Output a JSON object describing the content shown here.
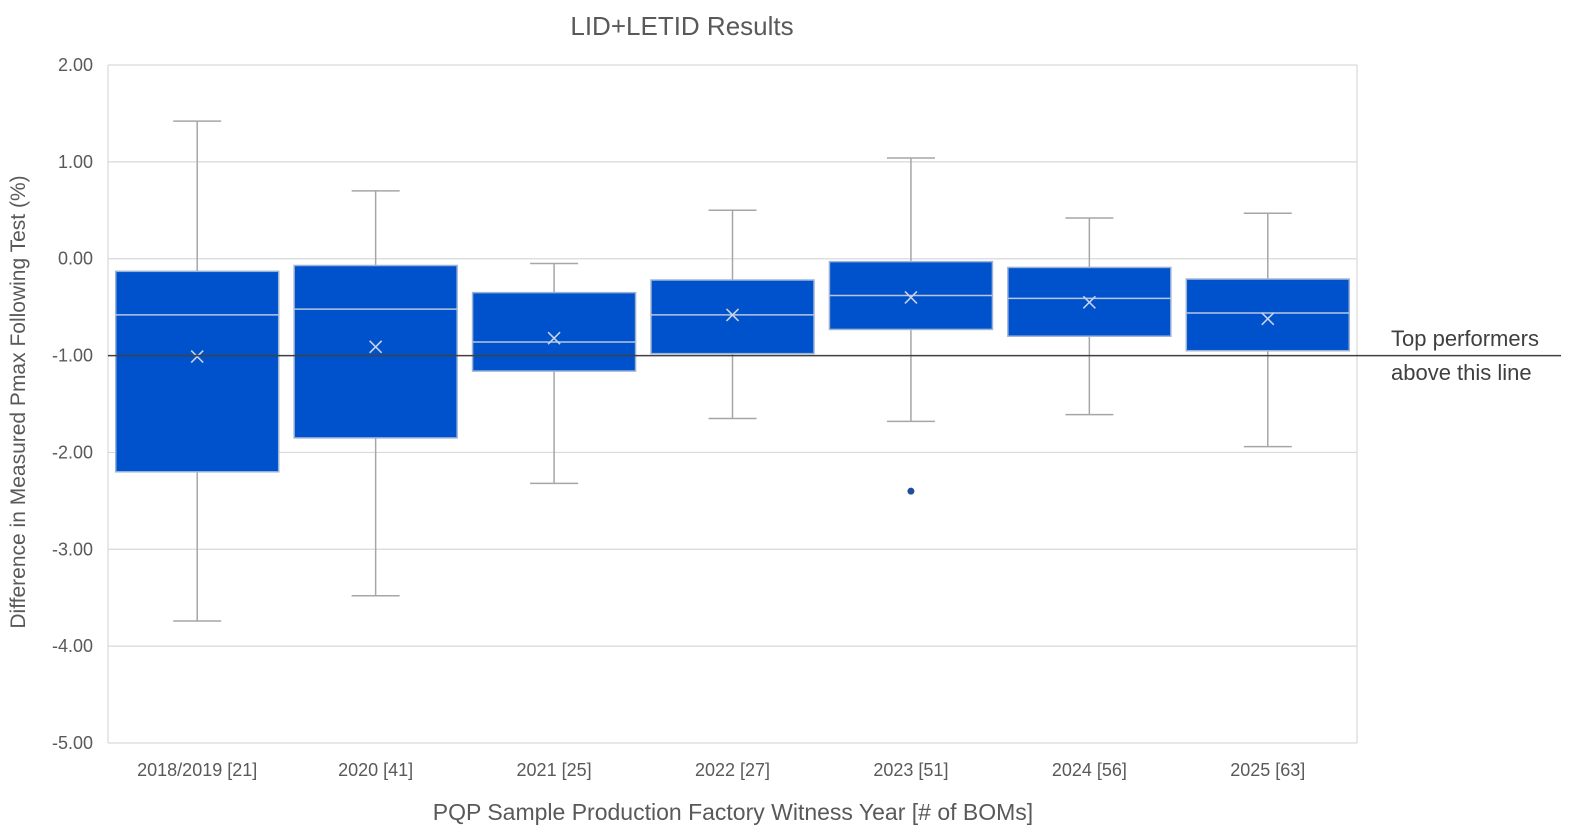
{
  "chart_data": {
    "type": "box",
    "title": "LID+LETID Results",
    "xlabel": "PQP Sample Production Factory Witness Year [# of BOMs]",
    "ylabel": "Difference in Measured Pmax Following Test (%)",
    "ylim": [
      -5,
      2
    ],
    "yticks": [
      "2.00",
      "1.00",
      "0.00",
      "-1.00",
      "-2.00",
      "-3.00",
      "-4.00",
      "-5.00"
    ],
    "grid": true,
    "box_color": "#0052CC",
    "whisker_color": "#A6A6A6",
    "reference_line": {
      "y": -1.0,
      "color": "#404040",
      "label_line1": "Top performers",
      "label_line2": "above this line"
    },
    "categories": [
      "2018/2019 [21]",
      "2020 [41]",
      "2021 [25]",
      "2022 [27]",
      "2023 [51]",
      "2024 [56]",
      "2025 [63]"
    ],
    "boxes": [
      {
        "min": -3.74,
        "q1": -2.2,
        "median": -0.58,
        "mean": -1.01,
        "q3": -0.13,
        "max": 1.42,
        "outliers": []
      },
      {
        "min": -3.48,
        "q1": -1.85,
        "median": -0.52,
        "mean": -0.91,
        "q3": -0.07,
        "max": 0.7,
        "outliers": []
      },
      {
        "min": -2.32,
        "q1": -1.16,
        "median": -0.86,
        "mean": -0.82,
        "q3": -0.35,
        "max": -0.05,
        "outliers": []
      },
      {
        "min": -1.65,
        "q1": -0.98,
        "median": -0.58,
        "mean": -0.58,
        "q3": -0.22,
        "max": 0.5,
        "outliers": []
      },
      {
        "min": -1.68,
        "q1": -0.73,
        "median": -0.38,
        "mean": -0.4,
        "q3": -0.03,
        "max": 1.04,
        "outliers": [
          -2.4
        ]
      },
      {
        "min": -1.61,
        "q1": -0.8,
        "median": -0.41,
        "mean": -0.45,
        "q3": -0.09,
        "max": 0.42,
        "outliers": []
      },
      {
        "min": -1.94,
        "q1": -0.95,
        "median": -0.56,
        "mean": -0.62,
        "q3": -0.21,
        "max": 0.47,
        "outliers": []
      }
    ]
  }
}
